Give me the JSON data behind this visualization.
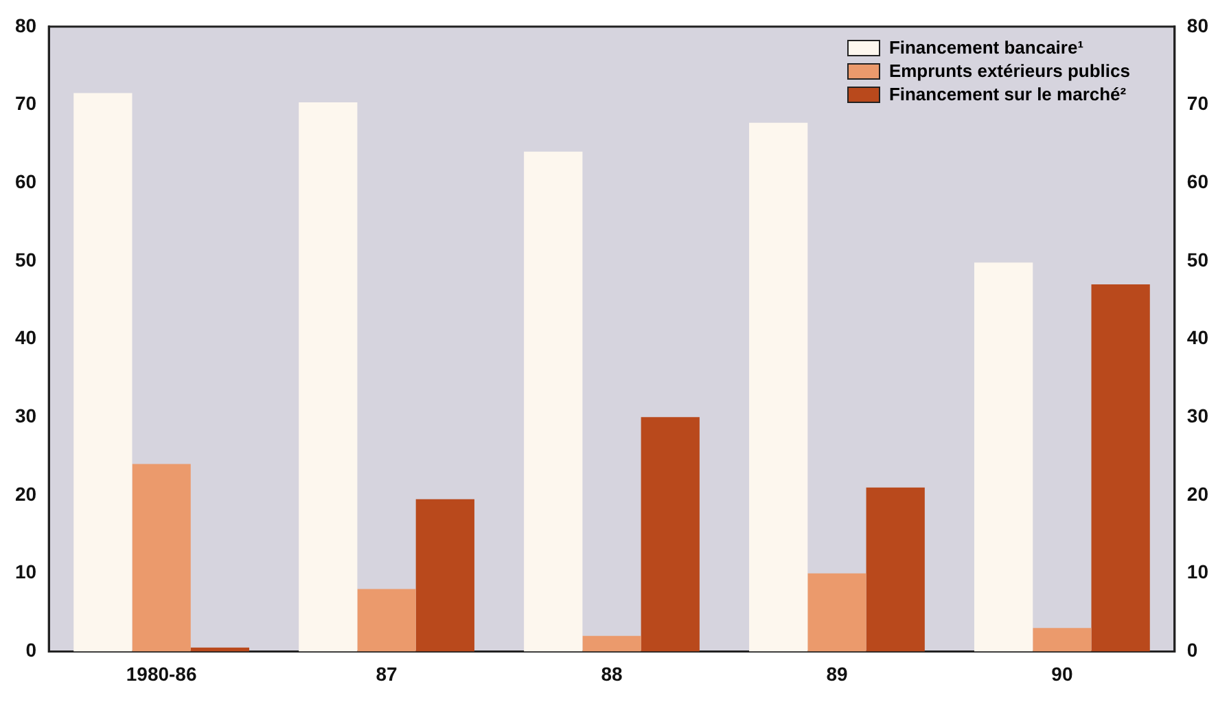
{
  "chart_data": {
    "type": "bar",
    "categories": [
      "1980-86",
      "87",
      "88",
      "89",
      "90"
    ],
    "series": [
      {
        "name": "Financement bancaire¹",
        "color": "#fdf7ee",
        "values": [
          71.5,
          70.3,
          64,
          67.7,
          49.8
        ]
      },
      {
        "name": "Emprunts extérieurs publics",
        "color": "#eb9a6c",
        "values": [
          24,
          8,
          2,
          10,
          3
        ]
      },
      {
        "name": "Financement sur le marché²",
        "color": "#b9491c",
        "values": [
          0.5,
          19.5,
          30,
          21,
          47
        ]
      }
    ],
    "ylim": [
      0,
      80
    ],
    "yticks": [
      0,
      10,
      20,
      30,
      40,
      50,
      60,
      70,
      80
    ],
    "y2lim": [
      0,
      80
    ],
    "y2ticks": [
      0,
      10,
      20,
      30,
      40,
      50,
      60,
      70,
      80
    ],
    "grid": false,
    "legend": "top right"
  }
}
